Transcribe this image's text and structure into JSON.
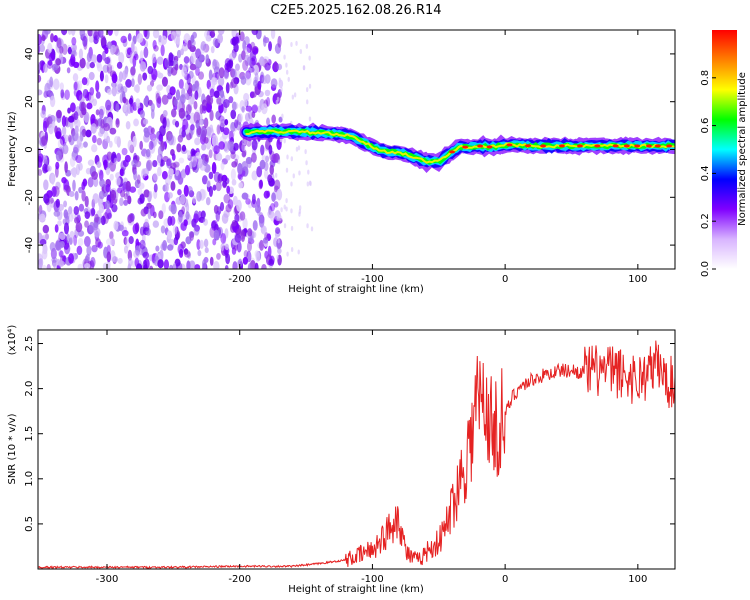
{
  "figure": {
    "title": "C2E5.2025.162.08.26.R14"
  },
  "chart_data": [
    {
      "type": "heatmap",
      "title": "C2E5.2025.162.08.26.R14",
      "xlabel": "Height of straight line (km)",
      "ylabel": "Frequency (Hz)",
      "xlim": [
        -352,
        128
      ],
      "ylim": [
        -50,
        50
      ],
      "xticks": [
        -300,
        -200,
        -100,
        0,
        100
      ],
      "yticks": [
        -40,
        -20,
        0,
        20,
        40
      ],
      "grid": false,
      "colorbar": {
        "label": "Normalized spectral amplitude",
        "range": [
          0.0,
          1.0
        ],
        "ticks": [
          0.0,
          0.2,
          0.4,
          0.6,
          0.8
        ],
        "colormap": [
          "#ffffff",
          "#d8b4ff",
          "#8000ff",
          "#0000ff",
          "#00ffff",
          "#00ff00",
          "#ffff00",
          "#ff8000",
          "#ff0000"
        ]
      },
      "regions": [
        {
          "name": "noise",
          "x_range": [
            -352,
            -175
          ],
          "freq_range": [
            -50,
            50
          ],
          "amplitude": 0.2
        },
        {
          "name": "carrier",
          "x_range": [
            -195,
            128
          ],
          "amplitude_max": 1.0
        }
      ],
      "ridge": {
        "x": [
          -195,
          -180,
          -160,
          -140,
          -120,
          -110,
          -100,
          -90,
          -80,
          -70,
          -60,
          -50,
          -45,
          -40,
          -35,
          -30,
          -20,
          -10,
          0,
          20,
          50,
          80,
          110,
          128
        ],
        "freq": [
          7,
          7.5,
          7.5,
          7,
          6,
          4,
          1,
          -1,
          -1,
          -3,
          -5,
          -5,
          -3,
          -1,
          1,
          1,
          1.5,
          1,
          2,
          1.5,
          1.5,
          1.5,
          1.5,
          1.5
        ]
      }
    },
    {
      "type": "line",
      "xlabel": "Height of straight line (km)",
      "ylabel": "SNR (10 * v/v)",
      "yscale_label": "(x10⁴)",
      "xlim": [
        -352,
        128
      ],
      "ylim": [
        0,
        2.65
      ],
      "xticks": [
        -300,
        -200,
        -100,
        0,
        100
      ],
      "yticks": [
        0.5,
        1.0,
        1.5,
        2.0,
        2.5
      ],
      "yticklabels": [
        "0.5",
        "1.0",
        "1.5",
        "2.0",
        "2.5"
      ],
      "grid": false,
      "color": "#e52222",
      "series": [
        {
          "x": [
            -352,
            -300,
            -250,
            -200,
            -160,
            -140,
            -120,
            -110,
            -100,
            -95,
            -90,
            -85,
            -82,
            -78,
            -75,
            -70,
            -65,
            -60,
            -55,
            -50,
            -45,
            -40,
            -35,
            -30,
            -25,
            -22,
            -20,
            -15,
            -12,
            -10,
            -5,
            0,
            5,
            10,
            20,
            30,
            40,
            50,
            60,
            70,
            80,
            90,
            100,
            110,
            115,
            120,
            128
          ],
          "y": [
            0.02,
            0.02,
            0.02,
            0.03,
            0.03,
            0.06,
            0.1,
            0.15,
            0.22,
            0.3,
            0.38,
            0.5,
            0.6,
            0.45,
            0.2,
            0.12,
            0.1,
            0.18,
            0.25,
            0.3,
            0.45,
            0.7,
            0.95,
            1.2,
            1.5,
            1.8,
            1.9,
            1.75,
            1.8,
            1.5,
            1.6,
            1.7,
            1.9,
            2.0,
            2.1,
            2.15,
            2.2,
            2.2,
            2.18,
            2.2,
            2.2,
            2.15,
            2.1,
            2.2,
            2.3,
            2.1,
            2.05
          ]
        }
      ]
    }
  ]
}
